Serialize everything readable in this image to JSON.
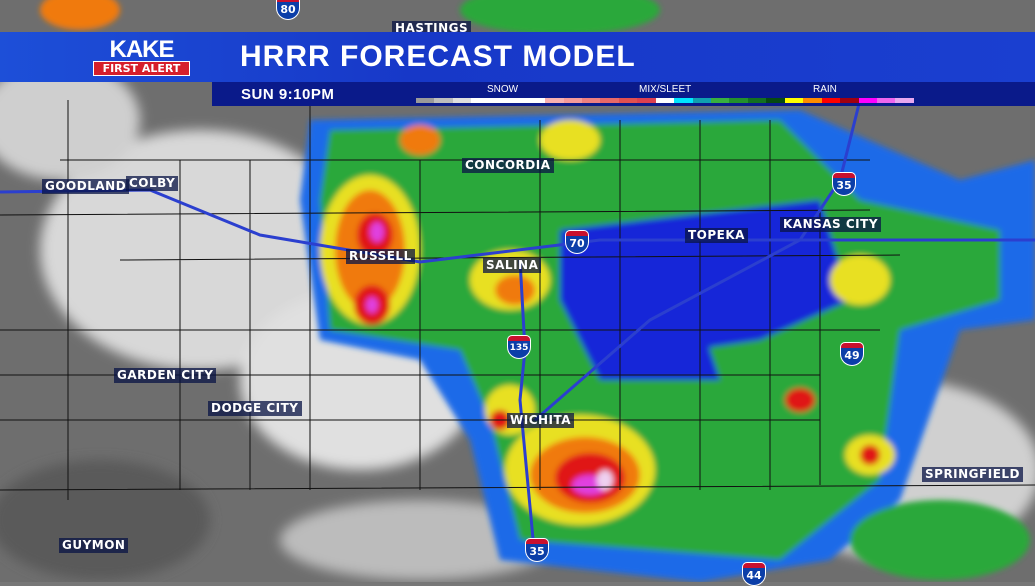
{
  "header": {
    "logo_top": "KAKE",
    "logo_bottom": "FIRST ALERT",
    "title": "HRRR FORECAST MODEL",
    "time": "SUN  9:10PM"
  },
  "legend": {
    "labels": [
      "SNOW",
      "MIX/SLEET",
      "RAIN"
    ],
    "colors": [
      "#9a9a9a",
      "#bdbdbd",
      "#dedede",
      "#ffffff",
      "#ffffff",
      "#ffffff",
      "#ffffff",
      "#f8b0b0",
      "#f59a9a",
      "#ee8080",
      "#e86868",
      "#e25050",
      "#dd4050",
      "#ffffff",
      "#00e5ff",
      "#10a0b0",
      "#38b040",
      "#23902c",
      "#137020",
      "#064a10",
      "#ffff00",
      "#ff8c00",
      "#ff0000",
      "#a00010",
      "#ff00ff",
      "#ee66ee",
      "#e8a8f0"
    ]
  },
  "cities": [
    "HASTINGS",
    "CONCORDIA",
    "GOODLAND",
    "COLBY",
    "RUSSELL",
    "SALINA",
    "TOPEKA",
    "KANSAS CITY",
    "GARDEN CITY",
    "DODGE CITY",
    "WICHITA",
    "SPRINGFIELD",
    "GUYMON"
  ],
  "interstates": [
    "80",
    "70",
    "135",
    "35",
    "35",
    "49",
    "44"
  ]
}
